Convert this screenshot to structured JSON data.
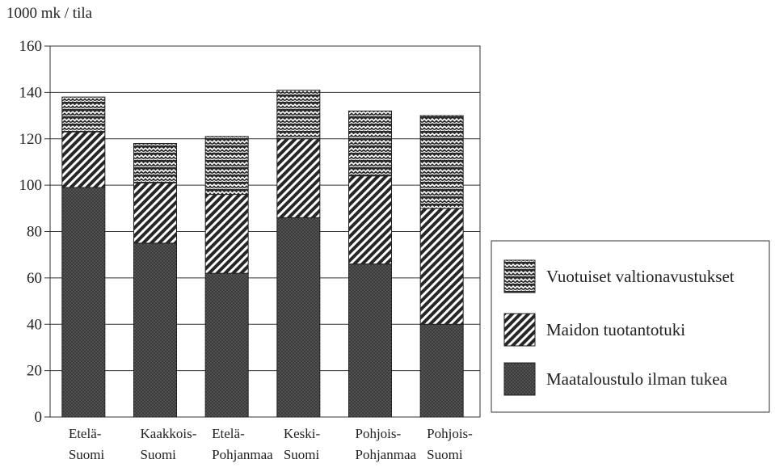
{
  "chart_data": {
    "type": "bar",
    "stacked": true,
    "ylabel": "1000 mk / tila",
    "ylim": [
      0,
      160
    ],
    "yticks": [
      0,
      20,
      40,
      60,
      80,
      100,
      120,
      140,
      160
    ],
    "grid": true,
    "legend_position": "right",
    "categories": [
      [
        "Etelä-",
        "Suomi"
      ],
      [
        "Kaakkois-",
        "Suomi"
      ],
      [
        "Etelä-",
        "Pohjanmaa"
      ],
      [
        "Keski-",
        "Suomi"
      ],
      [
        "Pohjois-",
        "Pohjanmaa"
      ],
      [
        "Pohjois-",
        "Suomi"
      ]
    ],
    "series": [
      {
        "name": "Maataloustulo ilman tukea",
        "pattern": "dots",
        "values": [
          99,
          75,
          62,
          86,
          66,
          40
        ]
      },
      {
        "name": "Maidon tuotantotuki",
        "pattern": "hatch",
        "values": [
          24,
          26,
          34,
          34,
          38,
          50
        ]
      },
      {
        "name": "Vuotuiset valtionavustukset",
        "pattern": "wave",
        "values": [
          15,
          17,
          25,
          21,
          28,
          40
        ]
      }
    ],
    "legend_order": [
      2,
      1,
      0
    ]
  }
}
